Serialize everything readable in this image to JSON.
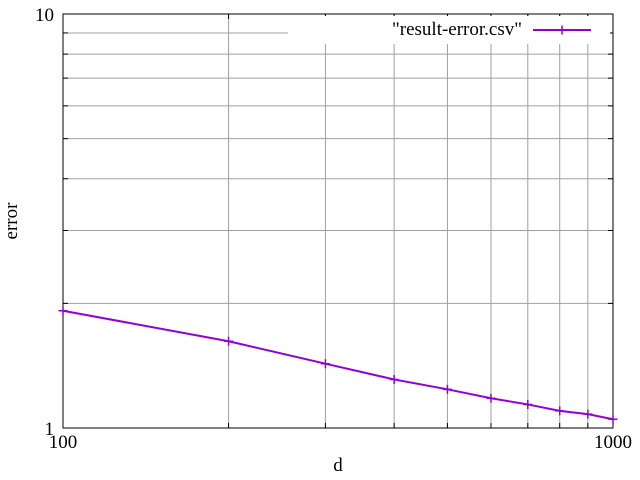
{
  "chart_data": {
    "type": "line",
    "title": "",
    "xlabel": "d",
    "ylabel": "error",
    "x_scale": "log",
    "y_scale": "log",
    "xlim": [
      100,
      1000
    ],
    "ylim": [
      1,
      10
    ],
    "x_tick_labels": [
      "100",
      "1000"
    ],
    "y_tick_labels": [
      "1",
      "10"
    ],
    "grid": true,
    "legend_position": "top-right",
    "series": [
      {
        "name": "\"result-error.csv\"",
        "color": "#9400d3",
        "marker": "plus",
        "x": [
          100,
          200,
          300,
          400,
          500,
          600,
          700,
          800,
          900,
          1000
        ],
        "y": [
          1.92,
          1.62,
          1.43,
          1.31,
          1.24,
          1.18,
          1.14,
          1.1,
          1.08,
          1.05
        ]
      }
    ]
  }
}
